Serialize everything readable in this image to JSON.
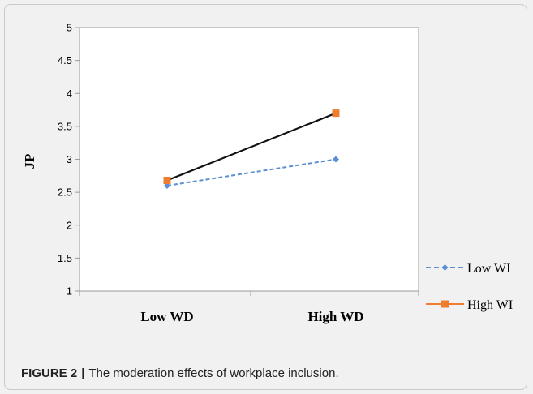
{
  "caption": {
    "label": "FIGURE 2",
    "separator": "|",
    "text": "The moderation effects of workplace inclusion."
  },
  "chart_data": {
    "type": "line",
    "title": "",
    "xlabel": "",
    "ylabel": "JP",
    "categories": [
      "Low WD",
      "High WD"
    ],
    "ylim": [
      1,
      5
    ],
    "yticks": [
      "1",
      "1.5",
      "2",
      "2.5",
      "3",
      "3.5",
      "4",
      "4.5",
      "5"
    ],
    "grid": false,
    "legend_position": "right",
    "series": [
      {
        "name": "Low WI",
        "values": [
          2.6,
          3.0
        ],
        "color": "#5b8fd1",
        "line_style": "dashed",
        "marker": "diamond"
      },
      {
        "name": "High WI",
        "values": [
          2.68,
          3.7
        ],
        "color": "#ef7d2f",
        "line_color": "#111111",
        "line_style": "solid",
        "marker": "square"
      }
    ]
  }
}
